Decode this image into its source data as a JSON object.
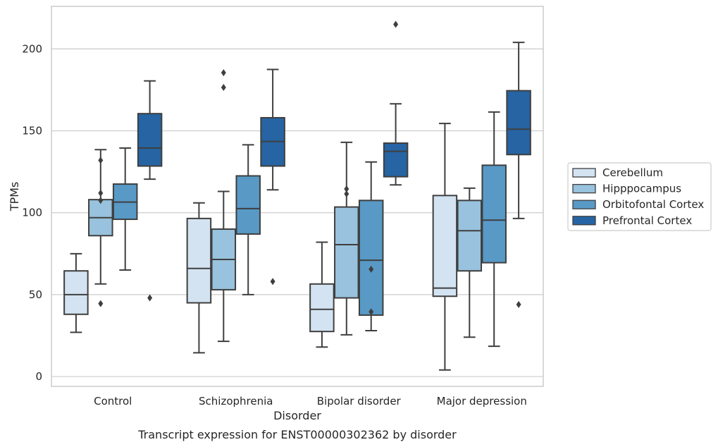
{
  "caption": "Transcript expression for ENST00000302362 by disorder",
  "chart_data": {
    "type": "box",
    "xlabel": "Disorder",
    "ylabel": "TPMs",
    "ylim": [
      -6,
      226
    ],
    "yticks": [
      0,
      50,
      100,
      150,
      200
    ],
    "grid": "horizontal",
    "legend_position": "right",
    "categories": [
      "Control",
      "Schizophrenia",
      "Bipolar disorder",
      "Major depression"
    ],
    "series": [
      {
        "name": "Cerebellum",
        "color": "#d3e3f1",
        "boxes": [
          {
            "whislo": 27,
            "q1": 38,
            "med": 50,
            "q3": 64.5,
            "whishi": 75,
            "fliers": []
          },
          {
            "whislo": 14.5,
            "q1": 45,
            "med": 66,
            "q3": 96.5,
            "whishi": 106,
            "fliers": []
          },
          {
            "whislo": 18,
            "q1": 27.5,
            "med": 41,
            "q3": 56.5,
            "whishi": 82,
            "fliers": []
          },
          {
            "whislo": 4,
            "q1": 49,
            "med": 54,
            "q3": 110.5,
            "whishi": 154.5,
            "fliers": []
          }
        ]
      },
      {
        "name": "Hipppocampus",
        "color": "#98c2dd",
        "boxes": [
          {
            "whislo": 56.5,
            "q1": 86,
            "med": 97,
            "q3": 108,
            "whishi": 138.5,
            "fliers": [
              44.5,
              107.5,
              112,
              132
            ]
          },
          {
            "whislo": 21.5,
            "q1": 53,
            "med": 71.5,
            "q3": 90,
            "whishi": 113,
            "fliers": [
              176.5,
              185.5
            ]
          },
          {
            "whislo": 25.5,
            "q1": 48,
            "med": 80.5,
            "q3": 103.5,
            "whishi": 143,
            "fliers": [
              111.5,
              114.5
            ]
          },
          {
            "whislo": 24,
            "q1": 64.5,
            "med": 89,
            "q3": 107.5,
            "whishi": 115,
            "fliers": []
          }
        ]
      },
      {
        "name": "Orbitofontal Cortex",
        "color": "#5899c6",
        "boxes": [
          {
            "whislo": 65,
            "q1": 96,
            "med": 106.5,
            "q3": 117.5,
            "whishi": 139.5,
            "fliers": []
          },
          {
            "whislo": 50,
            "q1": 87,
            "med": 102.5,
            "q3": 122.5,
            "whishi": 141.5,
            "fliers": []
          },
          {
            "whislo": 28,
            "q1": 37.5,
            "med": 71,
            "q3": 107.5,
            "whishi": 131,
            "fliers": [
              39.5,
              65.5
            ]
          },
          {
            "whislo": 18.5,
            "q1": 69.5,
            "med": 95.5,
            "q3": 129,
            "whishi": 161.5,
            "fliers": []
          }
        ]
      },
      {
        "name": "Prefrontal Cortex",
        "color": "#2664a3",
        "boxes": [
          {
            "whislo": 120.5,
            "q1": 128.5,
            "med": 139.5,
            "q3": 160.5,
            "whishi": 180.5,
            "fliers": [
              48
            ]
          },
          {
            "whislo": 114,
            "q1": 128.5,
            "med": 143.5,
            "q3": 158,
            "whishi": 187.5,
            "fliers": [
              58
            ]
          },
          {
            "whislo": 117,
            "q1": 122,
            "med": 137.5,
            "q3": 142.5,
            "whishi": 166.5,
            "fliers": [
              215
            ]
          },
          {
            "whislo": 96.5,
            "q1": 135.5,
            "med": 151,
            "q3": 174.5,
            "whishi": 204,
            "fliers": [
              44
            ]
          }
        ]
      }
    ]
  }
}
